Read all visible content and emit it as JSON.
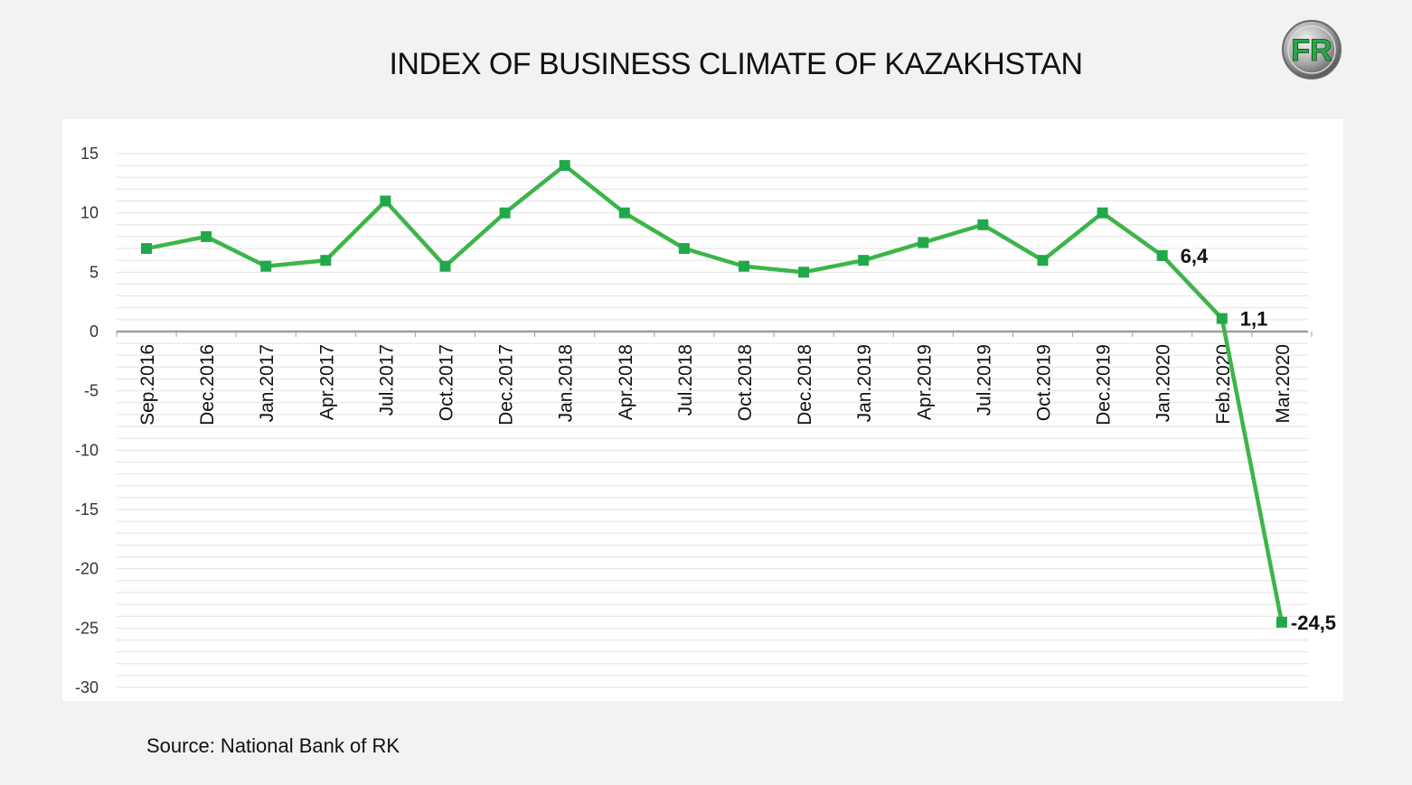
{
  "title": "INDEX OF BUSINESS CLIMATE OF KAZAKHSTAN",
  "source": "Source: National Bank of RK",
  "logo": {
    "icon": "fr-logo-icon",
    "text": "FR"
  },
  "colors": {
    "line": "#3cb54a",
    "marker": "#21a84a",
    "grid": "#e3e3e3",
    "zero_axis": "#9e9e9e",
    "background": "#f2f2f2",
    "panel": "#ffffff"
  },
  "chart_data": {
    "type": "line",
    "title": "INDEX OF BUSINESS CLIMATE OF KAZAKHSTAN",
    "xlabel": "",
    "ylabel": "",
    "ylim": [
      -30,
      15
    ],
    "yticks": [
      15,
      10,
      5,
      0,
      -5,
      -10,
      -15,
      -20,
      -25,
      -30
    ],
    "grid": true,
    "legend": "none",
    "categories": [
      "Sep.2016",
      "Dec.2016",
      "Jan.2017",
      "Apr.2017",
      "Jul.2017",
      "Oct.2017",
      "Dec.2017",
      "Jan.2018",
      "Apr.2018",
      "Jul.2018",
      "Oct.2018",
      "Dec.2018",
      "Jan.2019",
      "Apr.2019",
      "Jul.2019",
      "Oct.2019",
      "Dec.2019",
      "Jan.2020",
      "Feb.2020",
      "Mar.2020"
    ],
    "series": [
      {
        "values": [
          7,
          8,
          5.5,
          6,
          11,
          5.5,
          10,
          14,
          10,
          7,
          5.5,
          5,
          6,
          7.5,
          9,
          6,
          10,
          6.4,
          1.1,
          -24.5
        ]
      }
    ],
    "data_labels": [
      {
        "index": 17,
        "text": "6,4"
      },
      {
        "index": 18,
        "text": "1,1"
      },
      {
        "index": 19,
        "text": "-24,5"
      }
    ]
  }
}
